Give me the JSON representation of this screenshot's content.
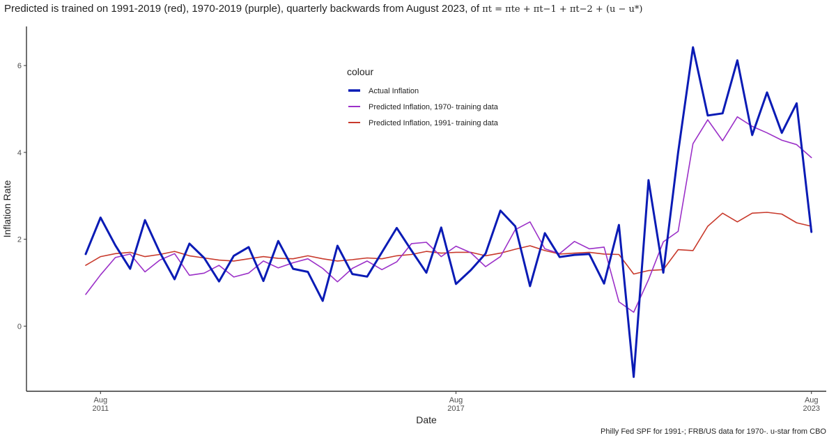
{
  "title": {
    "text": "Predicted is trained on 1991-2019 (red), 1970-2019 (purple), quarterly backwards from August 2023, of",
    "formula": "πt = πte + πt−1 + πt−2 + (u − u*)"
  },
  "caption": "Philly Fed SPF for 1991-; FRB/US data for 1970-. u-star from CBO",
  "chart_data": {
    "type": "line",
    "xlabel": "Date",
    "ylabel": "Inflation Rate",
    "ylim": [
      -1.5,
      6.9
    ],
    "xlim": [
      "2010-05",
      "2023-11"
    ],
    "yticks": [
      0,
      2,
      4,
      6
    ],
    "xticks": [
      {
        "value": "2011-08",
        "line1": "Aug",
        "line2": "2011"
      },
      {
        "value": "2017-08",
        "line1": "Aug",
        "line2": "2017"
      },
      {
        "value": "2023-08",
        "line1": "Aug",
        "line2": "2023"
      }
    ],
    "grid": false,
    "legend": {
      "title": "colour",
      "position": "inside-top-center"
    },
    "x": [
      "2011-05",
      "2011-08",
      "2011-11",
      "2012-02",
      "2012-05",
      "2012-08",
      "2012-11",
      "2013-02",
      "2013-05",
      "2013-08",
      "2013-11",
      "2014-02",
      "2014-05",
      "2014-08",
      "2014-11",
      "2015-02",
      "2015-05",
      "2015-08",
      "2015-11",
      "2016-02",
      "2016-05",
      "2016-08",
      "2016-11",
      "2017-02",
      "2017-05",
      "2017-08",
      "2017-11",
      "2018-02",
      "2018-05",
      "2018-08",
      "2018-11",
      "2019-02",
      "2019-05",
      "2019-08",
      "2019-11",
      "2020-02",
      "2020-05",
      "2020-08",
      "2020-11",
      "2021-02",
      "2021-05",
      "2021-08",
      "2021-11",
      "2022-02",
      "2022-05",
      "2022-08",
      "2022-11",
      "2023-02",
      "2023-05",
      "2023-08"
    ],
    "series": [
      {
        "name": "Actual Inflation",
        "color": "#0a1bb5",
        "width": 3,
        "values": [
          1.66,
          2.5,
          1.86,
          1.32,
          2.44,
          1.7,
          1.08,
          1.9,
          1.57,
          1.03,
          1.62,
          1.82,
          1.04,
          1.96,
          1.32,
          1.25,
          0.58,
          1.85,
          1.2,
          1.14,
          1.7,
          2.26,
          1.74,
          1.23,
          2.27,
          0.97,
          1.29,
          1.67,
          2.66,
          2.3,
          0.92,
          2.14,
          1.59,
          1.64,
          1.66,
          0.98,
          2.33,
          -1.17,
          3.36,
          1.23,
          4.0,
          6.42,
          4.85,
          4.9,
          6.12,
          4.4,
          5.38,
          4.45,
          5.13,
          2.17
        ]
      },
      {
        "name": "Predicted Inflation, 1970- training data",
        "color": "#9b30c8",
        "width": 1.6,
        "values": [
          0.73,
          1.18,
          1.58,
          1.66,
          1.25,
          1.52,
          1.67,
          1.17,
          1.22,
          1.4,
          1.13,
          1.22,
          1.5,
          1.34,
          1.46,
          1.55,
          1.33,
          1.02,
          1.33,
          1.5,
          1.3,
          1.48,
          1.9,
          1.93,
          1.6,
          1.84,
          1.69,
          1.37,
          1.6,
          2.22,
          2.4,
          1.78,
          1.67,
          1.95,
          1.78,
          1.82,
          0.56,
          0.32,
          1.07,
          1.94,
          2.18,
          4.2,
          4.75,
          4.27,
          4.82,
          4.6,
          4.45,
          4.28,
          4.18,
          3.88
        ]
      },
      {
        "name": "Predicted Inflation, 1991- training data",
        "color": "#c8392b",
        "width": 1.6,
        "values": [
          1.4,
          1.6,
          1.67,
          1.7,
          1.6,
          1.65,
          1.72,
          1.62,
          1.57,
          1.52,
          1.5,
          1.55,
          1.6,
          1.56,
          1.55,
          1.62,
          1.55,
          1.5,
          1.53,
          1.57,
          1.55,
          1.62,
          1.65,
          1.72,
          1.68,
          1.7,
          1.7,
          1.62,
          1.68,
          1.77,
          1.85,
          1.74,
          1.66,
          1.68,
          1.7,
          1.66,
          1.65,
          1.2,
          1.28,
          1.3,
          1.76,
          1.74,
          2.3,
          2.6,
          2.4,
          2.6,
          2.62,
          2.58,
          2.38,
          2.3
        ]
      }
    ]
  }
}
